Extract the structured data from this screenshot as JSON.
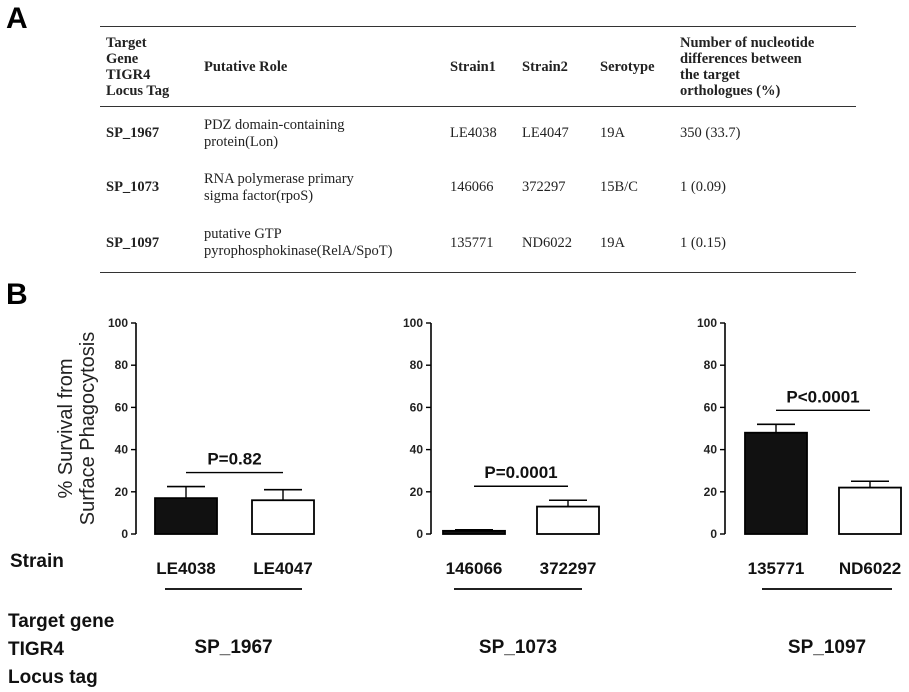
{
  "panel_a": {
    "letter": "A",
    "headers": {
      "target_gene": [
        "Target",
        "Gene",
        "TIGR4",
        "Locus Tag"
      ],
      "putative_role": "Putative Role",
      "strain1": "Strain1",
      "strain2": "Strain2",
      "serotype": "Serotype",
      "differences": [
        "Number of nucleotide",
        "differences between",
        "the target",
        "orthologues (%)"
      ]
    },
    "rows": [
      {
        "tag": "SP_1967",
        "role": [
          "PDZ domain-containing",
          "protein(Lon)"
        ],
        "strain1": "LE4038",
        "strain2": "LE4047",
        "serotype": "19A",
        "differences": "350 (33.7)"
      },
      {
        "tag": "SP_1073",
        "role": [
          "RNA polymerase primary",
          "sigma factor(rpoS)"
        ],
        "strain1": "146066",
        "strain2": "372297",
        "serotype": "15B/C",
        "differences": "1 (0.09)"
      },
      {
        "tag": "SP_1097",
        "role": [
          "putative GTP",
          "pyrophosphokinase(RelA/SpoT)"
        ],
        "strain1": "135771",
        "strain2": "ND6022",
        "serotype": "19A",
        "differences": "1 (0.15)"
      }
    ]
  },
  "panel_b": {
    "letter": "B",
    "strain_label": "Strain",
    "target_label": [
      "Target  gene",
      "TIGR4",
      "Locus tag"
    ]
  },
  "colors": {
    "filled_bar": "#111111",
    "open_bar": "#ffffff",
    "line": "#000000"
  },
  "chart_data": [
    {
      "type": "bar",
      "ylabel": [
        "% Survival from",
        "Surface Phagocytosis"
      ],
      "ylim": [
        0,
        100
      ],
      "yticks": [
        0,
        20,
        40,
        60,
        80,
        100
      ],
      "categories": [
        "LE4038",
        "LE4047"
      ],
      "values": [
        17,
        16
      ],
      "errors": [
        5.5,
        5
      ],
      "fills": [
        "filled",
        "open"
      ],
      "annotation": "P=0.82",
      "gene": "SP_1967"
    },
    {
      "type": "bar",
      "ylabel": [],
      "ylim": [
        0,
        100
      ],
      "yticks": [
        0,
        20,
        40,
        60,
        80,
        100
      ],
      "categories": [
        "146066",
        "372297"
      ],
      "values": [
        1.5,
        13
      ],
      "errors": [
        0.5,
        3
      ],
      "fills": [
        "filled",
        "open"
      ],
      "annotation": "P=0.0001",
      "gene": "SP_1073"
    },
    {
      "type": "bar",
      "ylabel": [],
      "ylim": [
        0,
        100
      ],
      "yticks": [
        0,
        20,
        40,
        60,
        80,
        100
      ],
      "categories": [
        "135771",
        "ND6022"
      ],
      "values": [
        48,
        22
      ],
      "errors": [
        4,
        3
      ],
      "fills": [
        "filled",
        "open"
      ],
      "annotation": "P<0.0001",
      "gene": "SP_1097"
    }
  ]
}
